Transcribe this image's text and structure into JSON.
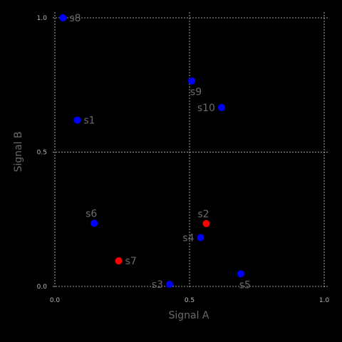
{
  "chart_data": {
    "type": "scatter",
    "xlabel": "Signal A",
    "ylabel": "Signal B",
    "xlim": [
      0,
      1
    ],
    "ylim": [
      0,
      1
    ],
    "xticks": [
      0,
      0.5,
      1
    ],
    "yticks": [
      0,
      0.5,
      1
    ],
    "xtick_labels": [
      "0.0",
      "0.5",
      "1.0"
    ],
    "ytick_labels": [
      "0.0",
      "0.5",
      "1.0"
    ],
    "grid": true,
    "colors": {
      "blue": "#0000ff",
      "red": "#ff0000",
      "background": "#000000"
    },
    "points": [
      {
        "label": "s1",
        "x": 0.083,
        "y": 0.619,
        "color": "blue",
        "label_pos": "right"
      },
      {
        "label": "s2",
        "x": 0.562,
        "y": 0.234,
        "color": "red",
        "label_pos": "above-left"
      },
      {
        "label": "s3",
        "x": 0.426,
        "y": 0.008,
        "color": "blue",
        "label_pos": "left"
      },
      {
        "label": "s4",
        "x": 0.541,
        "y": 0.182,
        "color": "blue",
        "label_pos": "left"
      },
      {
        "label": "s5",
        "x": 0.69,
        "y": 0.047,
        "color": "blue",
        "label_pos": "below"
      },
      {
        "label": "s6",
        "x": 0.146,
        "y": 0.235,
        "color": "blue",
        "label_pos": "above-left"
      },
      {
        "label": "s7",
        "x": 0.237,
        "y": 0.095,
        "color": "red",
        "label_pos": "right"
      },
      {
        "label": "s8",
        "x": 0.03,
        "y": 1.0,
        "color": "blue",
        "label_pos": "right"
      },
      {
        "label": "s9",
        "x": 0.508,
        "y": 0.765,
        "color": "blue",
        "label_pos": "below"
      },
      {
        "label": "s10",
        "x": 0.619,
        "y": 0.666,
        "color": "blue",
        "label_pos": "left"
      }
    ]
  }
}
